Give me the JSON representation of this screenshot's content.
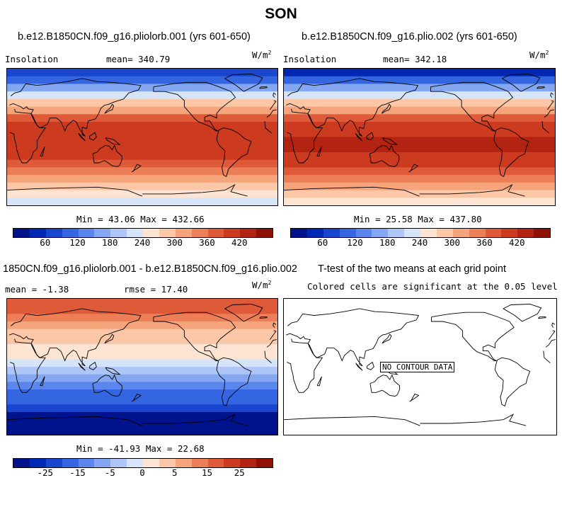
{
  "title": "SON",
  "units_base": "W/m",
  "units_exp": "2",
  "panels": {
    "p1": {
      "title": "b.e12.B1850CN.f09_g16.pliolorb.001 (yrs 601-650)",
      "left_label": "Insolation",
      "mean_label": "mean= 340.79",
      "minmax": "Min =  43.06 Max = 432.66"
    },
    "p2": {
      "title": "b.e12.B1850CN.f09_g16.plio.002 (yrs 601-650)",
      "left_label": "Insolation",
      "mean_label": "mean= 342.18",
      "minmax": "Min =  25.58 Max = 437.80"
    },
    "p3": {
      "title": "1850CN.f09_g16.pliolorb.001 - b.e12.B1850CN.f09_g16.plio.002",
      "mean_label": "mean =  -1.38",
      "rmse_label": "rmse =  17.40",
      "minmax": "Min = -41.93 Max =  22.68"
    },
    "p4": {
      "title": "T-test of the two means at each grid point",
      "subtitle": "Colored cells are significant at the 0.05 level",
      "no_data": "NO CONTOUR DATA"
    }
  },
  "colorbars": {
    "abs": {
      "colors": [
        "#00128c",
        "#0028b4",
        "#1a46cd",
        "#3366e0",
        "#5b87ec",
        "#85a7f2",
        "#aec6f6",
        "#d6e4f8",
        "#fde4d2",
        "#fcc7a7",
        "#f6a47c",
        "#ec7f58",
        "#df5a38",
        "#cc3a1f",
        "#b22311",
        "#8f1004"
      ],
      "ticks": [
        "60",
        "120",
        "180",
        "240",
        "300",
        "360",
        "420"
      ]
    },
    "diff": {
      "colors": [
        "#00128c",
        "#0028b4",
        "#1a46cd",
        "#3366e0",
        "#5b87ec",
        "#85a7f2",
        "#aec6f6",
        "#d6e4f8",
        "#fde4d2",
        "#fcc7a7",
        "#f6a47c",
        "#ec7f58",
        "#df5a38",
        "#cc3a1f",
        "#b22311",
        "#8f1004"
      ],
      "ticks": [
        "-25",
        "-15",
        "-5",
        "0",
        "5",
        "15",
        "25"
      ]
    }
  },
  "chart_data": [
    {
      "type": "heatmap",
      "title": "b.e12.B1850CN.f09_g16.pliolorb.001 (yrs 601-650)",
      "variable": "Insolation",
      "units": "W/m2",
      "mean": 340.79,
      "min": 43.06,
      "max": 432.66,
      "levels": [
        60,
        120,
        180,
        240,
        300,
        360,
        420
      ],
      "latitude_bands": [
        {
          "lat": 85,
          "value": 55
        },
        {
          "lat": 75,
          "value": 100
        },
        {
          "lat": 65,
          "value": 160
        },
        {
          "lat": 55,
          "value": 220
        },
        {
          "lat": 45,
          "value": 280
        },
        {
          "lat": 35,
          "value": 335
        },
        {
          "lat": 25,
          "value": 375
        },
        {
          "lat": 15,
          "value": 405
        },
        {
          "lat": 5,
          "value": 425
        },
        {
          "lat": -5,
          "value": 430
        },
        {
          "lat": -15,
          "value": 430
        },
        {
          "lat": -25,
          "value": 420
        },
        {
          "lat": -35,
          "value": 395
        },
        {
          "lat": -45,
          "value": 360
        },
        {
          "lat": -55,
          "value": 320
        },
        {
          "lat": -65,
          "value": 275
        },
        {
          "lat": -75,
          "value": 240
        },
        {
          "lat": -85,
          "value": 220
        }
      ]
    },
    {
      "type": "heatmap",
      "title": "b.e12.B1850CN.f09_g16.plio.002 (yrs 601-650)",
      "variable": "Insolation",
      "units": "W/m2",
      "mean": 342.18,
      "min": 25.58,
      "max": 437.8,
      "levels": [
        60,
        120,
        180,
        240,
        300,
        360,
        420
      ],
      "latitude_bands": [
        {
          "lat": 85,
          "value": 35
        },
        {
          "lat": 75,
          "value": 85
        },
        {
          "lat": 65,
          "value": 150
        },
        {
          "lat": 55,
          "value": 215
        },
        {
          "lat": 45,
          "value": 275
        },
        {
          "lat": 35,
          "value": 330
        },
        {
          "lat": 25,
          "value": 375
        },
        {
          "lat": 15,
          "value": 410
        },
        {
          "lat": 5,
          "value": 430
        },
        {
          "lat": -5,
          "value": 437
        },
        {
          "lat": -15,
          "value": 437
        },
        {
          "lat": -25,
          "value": 430
        },
        {
          "lat": -35,
          "value": 410
        },
        {
          "lat": -45,
          "value": 380
        },
        {
          "lat": -55,
          "value": 345
        },
        {
          "lat": -65,
          "value": 305
        },
        {
          "lat": -75,
          "value": 275
        },
        {
          "lat": -85,
          "value": 260
        }
      ]
    },
    {
      "type": "heatmap",
      "title": "1850CN.f09_g16.pliolorb.001 - b.e12.B1850CN.f09_g16.plio.002",
      "units": "W/m2",
      "mean": -1.38,
      "rmse": 17.4,
      "min": -41.93,
      "max": 22.68,
      "levels": [
        -25,
        -15,
        -5,
        0,
        5,
        15,
        25
      ],
      "latitude_bands": [
        {
          "lat": 85,
          "value": 20
        },
        {
          "lat": 75,
          "value": 18
        },
        {
          "lat": 65,
          "value": 14
        },
        {
          "lat": 55,
          "value": 10
        },
        {
          "lat": 45,
          "value": 8
        },
        {
          "lat": 35,
          "value": 6
        },
        {
          "lat": 25,
          "value": 3
        },
        {
          "lat": 15,
          "value": 1
        },
        {
          "lat": 5,
          "value": -2
        },
        {
          "lat": -5,
          "value": -6
        },
        {
          "lat": -15,
          "value": -10
        },
        {
          "lat": -25,
          "value": -14
        },
        {
          "lat": -35,
          "value": -18
        },
        {
          "lat": -45,
          "value": -22
        },
        {
          "lat": -55,
          "value": -26
        },
        {
          "lat": -65,
          "value": -32
        },
        {
          "lat": -75,
          "value": -38
        },
        {
          "lat": -85,
          "value": -41
        }
      ]
    }
  ]
}
